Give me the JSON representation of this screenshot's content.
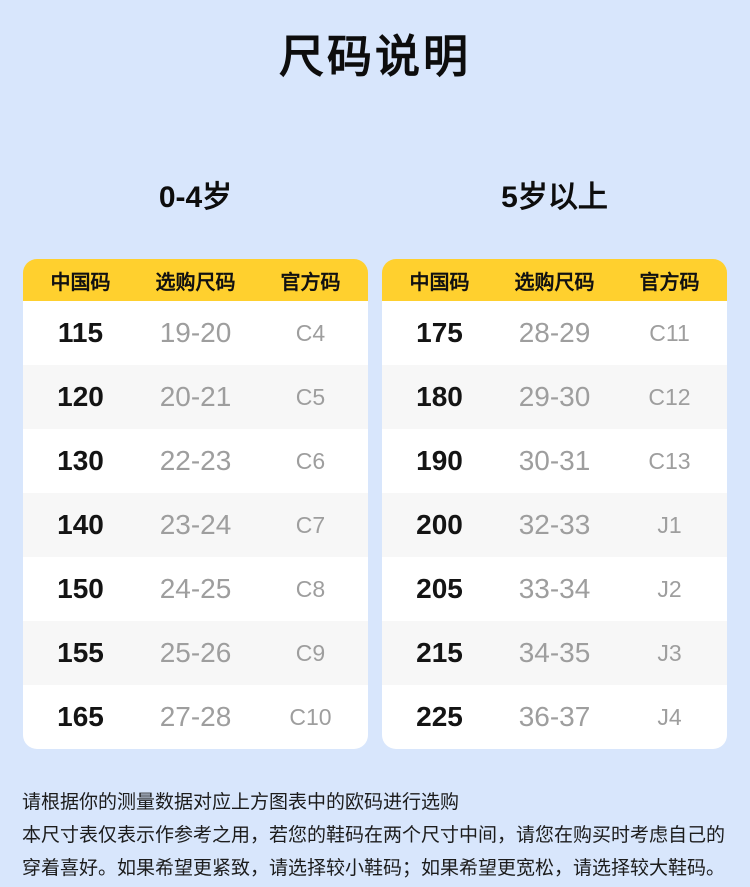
{
  "page": {
    "title": "尺码说明"
  },
  "colors": {
    "background": "#d8e6fc",
    "header_yellow": "#ffd02e",
    "row_white": "#ffffff",
    "row_alt_gray": "#f7f7f7",
    "text_dark": "#111111",
    "text_gray": "#9e9e9e"
  },
  "tables": [
    {
      "group_label": "0-4岁",
      "columns": [
        "中国码",
        "选购尺码",
        "官方码"
      ],
      "rows": [
        [
          "115",
          "19-20",
          "C4"
        ],
        [
          "120",
          "20-21",
          "C5"
        ],
        [
          "130",
          "22-23",
          "C6"
        ],
        [
          "140",
          "23-24",
          "C7"
        ],
        [
          "150",
          "24-25",
          "C8"
        ],
        [
          "155",
          "25-26",
          "C9"
        ],
        [
          "165",
          "27-28",
          "C10"
        ]
      ]
    },
    {
      "group_label": "5岁以上",
      "columns": [
        "中国码",
        "选购尺码",
        "官方码"
      ],
      "rows": [
        [
          "175",
          "28-29",
          "C11"
        ],
        [
          "180",
          "29-30",
          "C12"
        ],
        [
          "190",
          "30-31",
          "C13"
        ],
        [
          "200",
          "32-33",
          "J1"
        ],
        [
          "205",
          "33-34",
          "J2"
        ],
        [
          "215",
          "34-35",
          "J3"
        ],
        [
          "225",
          "36-37",
          "J4"
        ]
      ]
    }
  ],
  "notes": {
    "line1": "请根据你的测量数据对应上方图表中的欧码进行选购",
    "line2": "本尺寸表仅表示作参考之用，若您的鞋码在两个尺寸中间，请您在购买时考虑自己的穿着喜好。如果希望更紧致，请选择较小鞋码；如果希望更宽松，请选择较大鞋码。"
  }
}
